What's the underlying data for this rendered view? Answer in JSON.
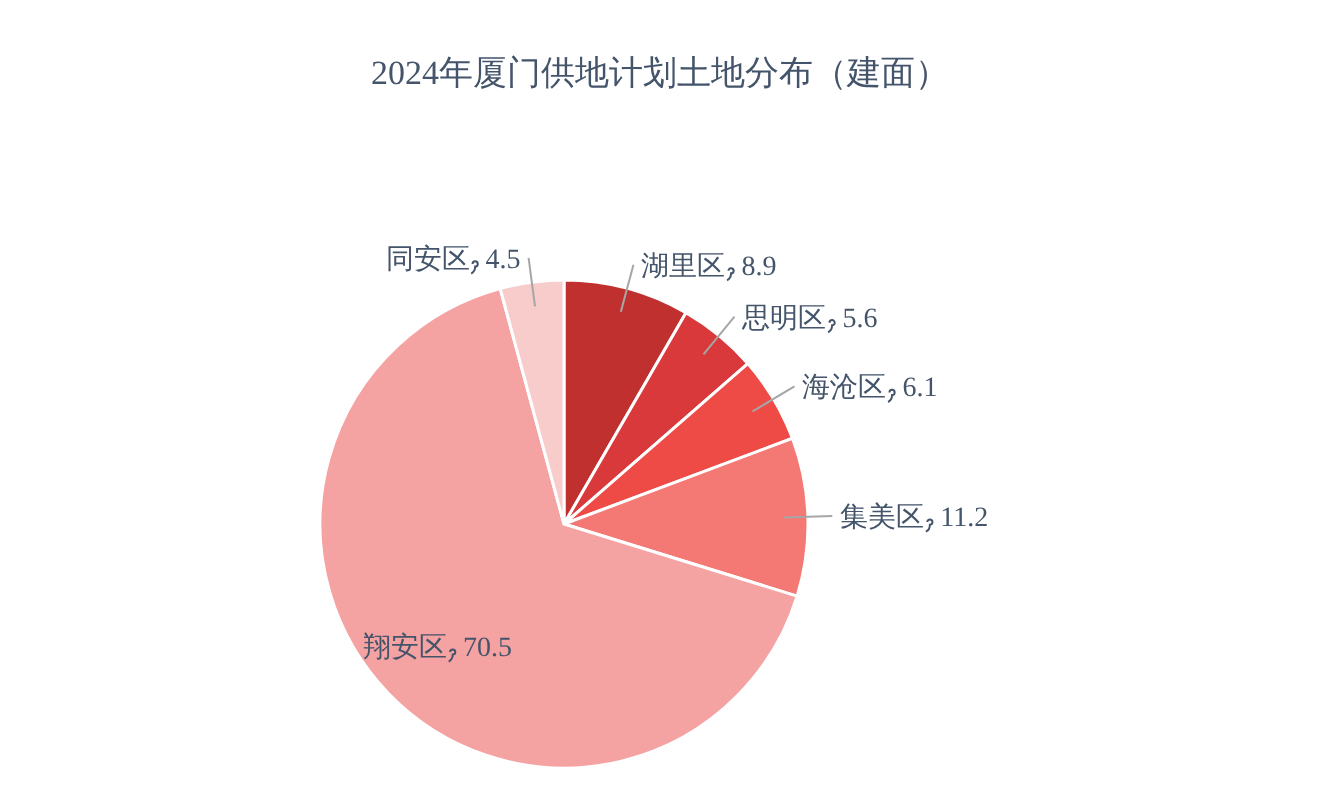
{
  "chart_data": {
    "type": "pie",
    "title": "2024年厦门供地计划土地分布（建面）",
    "categories": [
      "湖里区",
      "思明区",
      "海沧区",
      "集美区",
      "翔安区",
      "同安区"
    ],
    "values": [
      8.9,
      5.6,
      6.1,
      11.2,
      70.5,
      4.5
    ],
    "colors": [
      "#c0302f",
      "#d9393a",
      "#ee4b46",
      "#f47874",
      "#f4a2a2",
      "#f8cccb"
    ],
    "data_labels": true
  }
}
